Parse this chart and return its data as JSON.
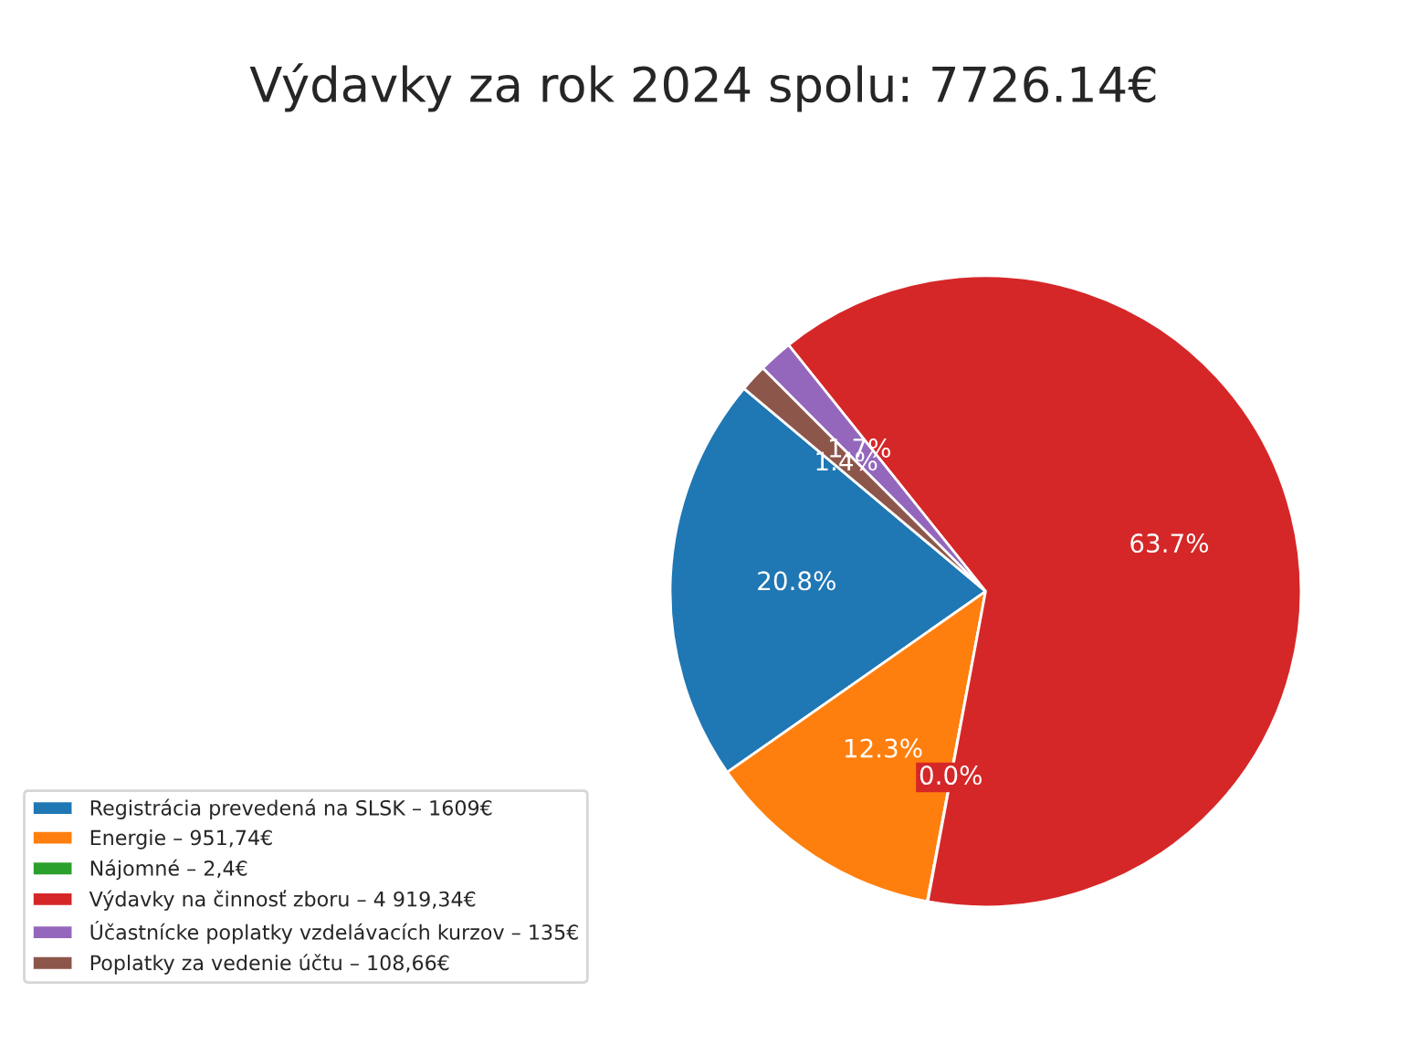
{
  "chart_data": {
    "type": "pie",
    "title": "Výdavky za rok 2024 spolu: 7726.14€",
    "categories": [
      "Registrácia prevedená na SLSK – 1609€",
      "Energie – 951,74€",
      "Nájomné – 2,4€",
      "Výdavky na činnosť zboru – 4 919,34€",
      "Účastnícke poplatky vzdelávacích kurzov – 135€",
      "Poplatky za vedenie účtu – 108,66€"
    ],
    "values": [
      20.83,
      12.32,
      0.03,
      63.67,
      1.75,
      1.4
    ],
    "value_labels": [
      "20.8%",
      "12.3%",
      "0.0%",
      "63.7%",
      "1.7%",
      "1.4%"
    ],
    "colors": [
      "#1f77b4",
      "#ff7f0e",
      "#2ca02c",
      "#d62728",
      "#9467bd",
      "#8c564b"
    ],
    "legend": "bottom left"
  }
}
